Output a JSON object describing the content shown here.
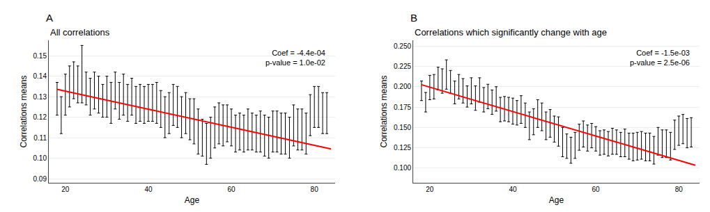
{
  "chart_data": [
    {
      "type": "errorbar",
      "title": "All correlations",
      "label": "A",
      "xlabel": "Age",
      "ylabel": "Correlations means",
      "annotations": [
        "Coef = -4.4e-04",
        "p-value = 1.0e-02"
      ],
      "xlim": [
        16,
        85
      ],
      "xticks": [
        20,
        40,
        60,
        80
      ],
      "ylim": [
        0.088,
        0.1575
      ],
      "yticks": [
        0.09,
        {
          "value": 0.1,
          "label": "0.10"
        },
        0.11,
        0.12,
        0.13,
        0.14,
        0.15
      ],
      "grid": "y",
      "series": [
        {
          "type": "errorbar",
          "color": "#000000",
          "x": [
            18,
            19,
            20,
            21,
            22,
            23,
            24,
            25,
            26,
            27,
            28,
            29,
            30,
            31,
            32,
            33,
            34,
            35,
            36,
            37,
            38,
            39,
            40,
            41,
            42,
            43,
            44,
            45,
            46,
            47,
            48,
            49,
            50,
            51,
            52,
            53,
            54,
            55,
            56,
            57,
            58,
            59,
            60,
            61,
            62,
            63,
            64,
            65,
            66,
            67,
            68,
            69,
            70,
            71,
            72,
            73,
            74,
            75,
            76,
            77,
            78,
            79,
            80,
            81,
            82,
            83
          ],
          "values": [
            0.129,
            0.121,
            0.131,
            0.135,
            0.138,
            0.136,
            0.141,
            0.134,
            0.13,
            0.133,
            0.131,
            0.128,
            0.13,
            0.127,
            0.133,
            0.128,
            0.131,
            0.127,
            0.13,
            0.126,
            0.127,
            0.126,
            0.127,
            0.127,
            0.127,
            0.124,
            0.12,
            0.122,
            0.126,
            0.125,
            0.12,
            0.122,
            0.119,
            0.118,
            0.113,
            0.11,
            0.107,
            0.11,
            0.115,
            0.117,
            0.116,
            0.117,
            0.115,
            0.112,
            0.113,
            0.112,
            0.114,
            0.113,
            0.112,
            0.113,
            0.111,
            0.11,
            0.113,
            0.113,
            0.112,
            0.112,
            0.11,
            0.116,
            0.114,
            0.114,
            0.112,
            0.121,
            0.125,
            0.125,
            0.122,
            0.122
          ],
          "errors": [
            0.008,
            0.009,
            0.01,
            0.01,
            0.009,
            0.009,
            0.014,
            0.008,
            0.009,
            0.009,
            0.009,
            0.008,
            0.01,
            0.01,
            0.009,
            0.009,
            0.01,
            0.009,
            0.009,
            0.009,
            0.009,
            0.009,
            0.009,
            0.009,
            0.01,
            0.009,
            0.01,
            0.01,
            0.01,
            0.01,
            0.01,
            0.01,
            0.01,
            0.011,
            0.011,
            0.009,
            0.01,
            0.01,
            0.01,
            0.01,
            0.01,
            0.009,
            0.009,
            0.009,
            0.009,
            0.009,
            0.01,
            0.009,
            0.009,
            0.01,
            0.01,
            0.01,
            0.01,
            0.01,
            0.01,
            0.01,
            0.01,
            0.01,
            0.01,
            0.01,
            0.01,
            0.01,
            0.01,
            0.01,
            0.01,
            0.01
          ]
        },
        {
          "type": "line",
          "color": "#FF0000",
          "x": [
            18,
            84
          ],
          "values": [
            0.13358,
            0.10454
          ]
        }
      ]
    },
    {
      "type": "errorbar",
      "title": "Correlations which significantly change with age",
      "label": "B",
      "xlabel": "Age",
      "ylabel": "Correlations means",
      "annotations": [
        "Coef = -1.5e-03",
        "p-value = 2.5e-06"
      ],
      "xlim": [
        16,
        85
      ],
      "xticks": [
        20,
        40,
        60,
        80
      ],
      "ylim": [
        0.082,
        0.257
      ],
      "yticks": [
        {
          "value": 0.1,
          "label": "0.100"
        },
        0.125,
        {
          "value": 0.15,
          "label": "0.150"
        },
        0.175,
        {
          "value": 0.2,
          "label": "0.200"
        },
        0.225,
        {
          "value": 0.25,
          "label": "0.250"
        }
      ],
      "grid": "y",
      "series": [
        {
          "type": "errorbar",
          "color": "#000000",
          "x": [
            18,
            19,
            20,
            21,
            22,
            23,
            24,
            25,
            26,
            27,
            28,
            29,
            30,
            31,
            32,
            33,
            34,
            35,
            36,
            37,
            38,
            39,
            40,
            41,
            42,
            43,
            44,
            45,
            46,
            47,
            48,
            49,
            50,
            51,
            52,
            53,
            54,
            55,
            56,
            57,
            58,
            59,
            60,
            61,
            62,
            63,
            64,
            65,
            66,
            67,
            68,
            69,
            70,
            71,
            72,
            73,
            74,
            75,
            76,
            77,
            78,
            79,
            80,
            81,
            82,
            83
          ],
          "values": [
            0.195,
            0.181,
            0.199,
            0.2,
            0.21,
            0.207,
            0.215,
            0.206,
            0.193,
            0.2,
            0.195,
            0.188,
            0.195,
            0.186,
            0.196,
            0.184,
            0.188,
            0.181,
            0.185,
            0.172,
            0.173,
            0.172,
            0.17,
            0.168,
            0.172,
            0.165,
            0.152,
            0.157,
            0.167,
            0.163,
            0.152,
            0.155,
            0.148,
            0.145,
            0.132,
            0.127,
            0.122,
            0.128,
            0.138,
            0.142,
            0.137,
            0.14,
            0.136,
            0.131,
            0.132,
            0.13,
            0.133,
            0.132,
            0.129,
            0.131,
            0.127,
            0.126,
            0.127,
            0.128,
            0.126,
            0.126,
            0.122,
            0.133,
            0.13,
            0.13,
            0.127,
            0.141,
            0.146,
            0.148,
            0.143,
            0.144
          ],
          "errors": [
            0.012,
            0.012,
            0.015,
            0.015,
            0.014,
            0.015,
            0.018,
            0.014,
            0.014,
            0.015,
            0.015,
            0.013,
            0.016,
            0.015,
            0.015,
            0.015,
            0.015,
            0.015,
            0.015,
            0.015,
            0.015,
            0.015,
            0.016,
            0.015,
            0.017,
            0.015,
            0.017,
            0.016,
            0.017,
            0.017,
            0.017,
            0.017,
            0.016,
            0.018,
            0.018,
            0.015,
            0.016,
            0.016,
            0.016,
            0.016,
            0.016,
            0.015,
            0.015,
            0.015,
            0.015,
            0.015,
            0.016,
            0.015,
            0.015,
            0.017,
            0.016,
            0.017,
            0.017,
            0.017,
            0.017,
            0.017,
            0.017,
            0.017,
            0.017,
            0.017,
            0.017,
            0.018,
            0.018,
            0.018,
            0.018,
            0.018
          ]
        },
        {
          "type": "line",
          "color": "#FF0000",
          "x": [
            18,
            84
          ],
          "values": [
            0.2025,
            0.1035
          ]
        }
      ]
    }
  ]
}
